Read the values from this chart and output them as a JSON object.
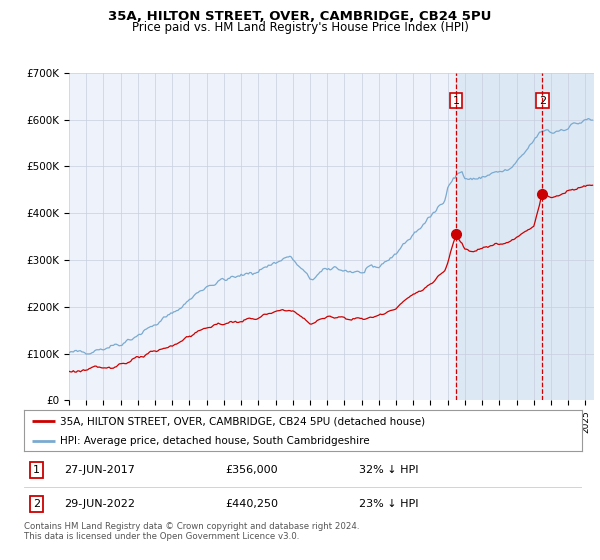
{
  "title": "35A, HILTON STREET, OVER, CAMBRIDGE, CB24 5PU",
  "subtitle": "Price paid vs. HM Land Registry's House Price Index (HPI)",
  "legend_label_red": "35A, HILTON STREET, OVER, CAMBRIDGE, CB24 5PU (detached house)",
  "legend_label_blue": "HPI: Average price, detached house, South Cambridgeshire",
  "annotation1_date": "27-JUN-2017",
  "annotation1_price": "£356,000",
  "annotation1_hpi": "32% ↓ HPI",
  "annotation2_date": "29-JUN-2022",
  "annotation2_price": "£440,250",
  "annotation2_hpi": "23% ↓ HPI",
  "footnote": "Contains HM Land Registry data © Crown copyright and database right 2024.\nThis data is licensed under the Open Government Licence v3.0.",
  "bg_color": "#ffffff",
  "plot_bg_color": "#eef2fa",
  "grid_color": "#c8cfe0",
  "red_color": "#cc0000",
  "blue_color": "#7aaad0",
  "highlight_bg": "#dde8f5",
  "dashed_line_color": "#cc0000",
  "marker1_x_year": 2017.49,
  "marker2_x_year": 2022.49,
  "marker1_y": 356000,
  "marker2_y": 440250,
  "ylim": [
    0,
    700000
  ],
  "xlim_start": 1995.0,
  "xlim_end": 2025.5
}
